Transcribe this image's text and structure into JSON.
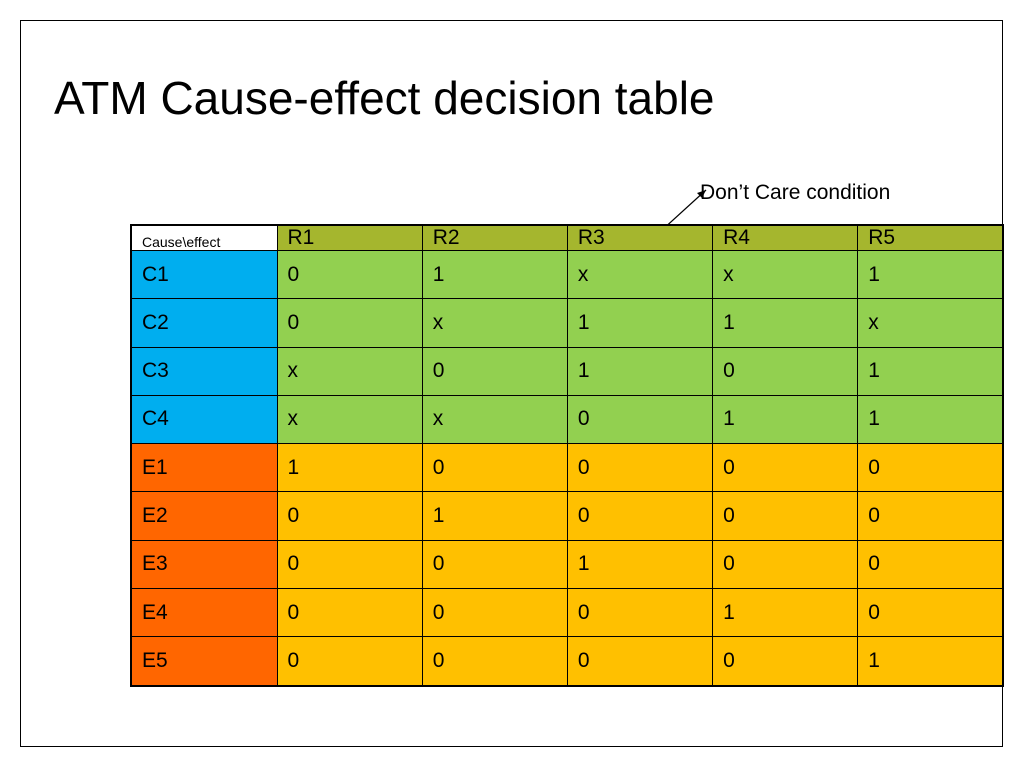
{
  "title": "ATM Cause-effect decision table",
  "callout": "Don’t Care condition",
  "colors": {
    "rule_header": "#a5b62e",
    "cause_label": "#00aeef",
    "effect_label": "#ff6600",
    "cause_cells": "#92d050",
    "effect_cells": "#ffc000"
  },
  "table": {
    "corner": "Cause\\effect",
    "rules": [
      "R1",
      "R2",
      "R3",
      "R4",
      "R5"
    ],
    "causes": [
      {
        "label": "C1",
        "values": [
          "0",
          "1",
          "x",
          "x",
          "1"
        ]
      },
      {
        "label": "C2",
        "values": [
          "0",
          "x",
          "1",
          "1",
          "x"
        ]
      },
      {
        "label": "C3",
        "values": [
          "x",
          "0",
          "1",
          "0",
          "1"
        ]
      },
      {
        "label": "C4",
        "values": [
          "x",
          "x",
          "0",
          "1",
          "1"
        ]
      }
    ],
    "effects": [
      {
        "label": "E1",
        "values": [
          "1",
          "0",
          "0",
          "0",
          "0"
        ]
      },
      {
        "label": "E2",
        "values": [
          "0",
          "1",
          "0",
          "0",
          "0"
        ]
      },
      {
        "label": "E3",
        "values": [
          "0",
          "0",
          "1",
          "0",
          "0"
        ]
      },
      {
        "label": "E4",
        "values": [
          "0",
          "0",
          "0",
          "1",
          "0"
        ]
      },
      {
        "label": "E5",
        "values": [
          "0",
          "0",
          "0",
          "0",
          "1"
        ]
      }
    ]
  }
}
